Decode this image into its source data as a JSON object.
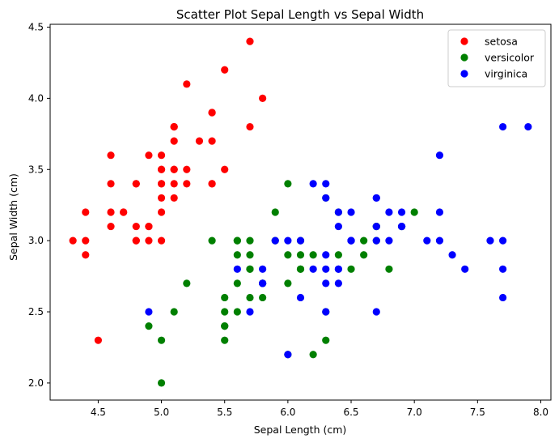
{
  "chart_data": {
    "type": "scatter",
    "title": "Scatter Plot Sepal Length vs Sepal Width",
    "xlabel": "Sepal Length (cm)",
    "ylabel": "Sepal Width (cm)",
    "xlim": [
      4.12,
      8.08
    ],
    "ylim": [
      1.88,
      4.52
    ],
    "xticks": [
      "4.5",
      "5.0",
      "5.5",
      "6.0",
      "6.5",
      "7.0",
      "7.5",
      "8.0"
    ],
    "yticks": [
      "2.0",
      "2.5",
      "3.0",
      "3.5",
      "4.0",
      "4.5"
    ],
    "grid": false,
    "legend_position": "top-right",
    "series": [
      {
        "name": "setosa",
        "color": "#ff0000",
        "points": [
          [
            5.1,
            3.5
          ],
          [
            4.9,
            3.0
          ],
          [
            4.7,
            3.2
          ],
          [
            4.6,
            3.1
          ],
          [
            5.0,
            3.6
          ],
          [
            5.4,
            3.9
          ],
          [
            4.6,
            3.4
          ],
          [
            5.0,
            3.4
          ],
          [
            4.4,
            2.9
          ],
          [
            4.9,
            3.1
          ],
          [
            5.4,
            3.7
          ],
          [
            4.8,
            3.4
          ],
          [
            4.8,
            3.0
          ],
          [
            4.3,
            3.0
          ],
          [
            5.8,
            4.0
          ],
          [
            5.7,
            4.4
          ],
          [
            5.4,
            3.9
          ],
          [
            5.1,
            3.5
          ],
          [
            5.7,
            3.8
          ],
          [
            5.1,
            3.8
          ],
          [
            5.4,
            3.4
          ],
          [
            5.1,
            3.7
          ],
          [
            4.6,
            3.6
          ],
          [
            5.1,
            3.3
          ],
          [
            4.8,
            3.4
          ],
          [
            5.0,
            3.0
          ],
          [
            5.0,
            3.4
          ],
          [
            5.2,
            3.5
          ],
          [
            5.2,
            3.4
          ],
          [
            4.7,
            3.2
          ],
          [
            4.8,
            3.1
          ],
          [
            5.4,
            3.4
          ],
          [
            5.2,
            4.1
          ],
          [
            5.5,
            4.2
          ],
          [
            4.9,
            3.1
          ],
          [
            5.0,
            3.2
          ],
          [
            5.5,
            3.5
          ],
          [
            4.9,
            3.6
          ],
          [
            4.4,
            3.0
          ],
          [
            5.1,
            3.4
          ],
          [
            5.0,
            3.5
          ],
          [
            4.5,
            2.3
          ],
          [
            4.4,
            3.2
          ],
          [
            5.0,
            3.5
          ],
          [
            5.1,
            3.8
          ],
          [
            4.8,
            3.0
          ],
          [
            5.1,
            3.8
          ],
          [
            4.6,
            3.2
          ],
          [
            5.3,
            3.7
          ],
          [
            5.0,
            3.3
          ]
        ]
      },
      {
        "name": "versicolor",
        "color": "#008000",
        "points": [
          [
            7.0,
            3.2
          ],
          [
            6.4,
            3.2
          ],
          [
            6.9,
            3.1
          ],
          [
            5.5,
            2.3
          ],
          [
            6.5,
            2.8
          ],
          [
            5.7,
            2.8
          ],
          [
            6.3,
            3.3
          ],
          [
            4.9,
            2.4
          ],
          [
            6.6,
            2.9
          ],
          [
            5.2,
            2.7
          ],
          [
            5.0,
            2.0
          ],
          [
            5.9,
            3.0
          ],
          [
            6.0,
            2.2
          ],
          [
            6.1,
            2.9
          ],
          [
            5.6,
            2.9
          ],
          [
            6.7,
            3.1
          ],
          [
            5.6,
            3.0
          ],
          [
            5.8,
            2.7
          ],
          [
            6.2,
            2.2
          ],
          [
            5.6,
            2.5
          ],
          [
            5.9,
            3.2
          ],
          [
            6.1,
            2.8
          ],
          [
            6.3,
            2.5
          ],
          [
            6.1,
            2.8
          ],
          [
            6.4,
            2.9
          ],
          [
            6.6,
            3.0
          ],
          [
            6.8,
            2.8
          ],
          [
            6.7,
            3.0
          ],
          [
            6.0,
            2.9
          ],
          [
            5.7,
            2.6
          ],
          [
            5.5,
            2.4
          ],
          [
            5.5,
            2.4
          ],
          [
            5.8,
            2.7
          ],
          [
            6.0,
            2.7
          ],
          [
            5.4,
            3.0
          ],
          [
            6.0,
            3.4
          ],
          [
            6.7,
            3.1
          ],
          [
            6.3,
            2.3
          ],
          [
            5.6,
            3.0
          ],
          [
            5.5,
            2.5
          ],
          [
            5.5,
            2.6
          ],
          [
            6.1,
            3.0
          ],
          [
            5.8,
            2.6
          ],
          [
            5.0,
            2.3
          ],
          [
            5.6,
            2.7
          ],
          [
            5.7,
            3.0
          ],
          [
            5.7,
            2.9
          ],
          [
            6.2,
            2.9
          ],
          [
            5.1,
            2.5
          ],
          [
            5.7,
            2.8
          ]
        ]
      },
      {
        "name": "virginica",
        "color": "#0000ff",
        "points": [
          [
            6.3,
            3.3
          ],
          [
            5.8,
            2.7
          ],
          [
            7.1,
            3.0
          ],
          [
            6.3,
            2.9
          ],
          [
            6.5,
            3.0
          ],
          [
            7.6,
            3.0
          ],
          [
            4.9,
            2.5
          ],
          [
            7.3,
            2.9
          ],
          [
            6.7,
            2.5
          ],
          [
            7.2,
            3.6
          ],
          [
            6.5,
            3.2
          ],
          [
            6.4,
            2.7
          ],
          [
            6.8,
            3.0
          ],
          [
            5.7,
            2.5
          ],
          [
            5.8,
            2.8
          ],
          [
            6.4,
            3.2
          ],
          [
            6.5,
            3.0
          ],
          [
            7.7,
            3.8
          ],
          [
            7.7,
            2.6
          ],
          [
            6.0,
            2.2
          ],
          [
            6.9,
            3.2
          ],
          [
            5.6,
            2.8
          ],
          [
            7.7,
            2.8
          ],
          [
            6.3,
            2.7
          ],
          [
            6.7,
            3.3
          ],
          [
            7.2,
            3.2
          ],
          [
            6.2,
            2.8
          ],
          [
            6.1,
            3.0
          ],
          [
            6.4,
            2.8
          ],
          [
            7.2,
            3.0
          ],
          [
            7.4,
            2.8
          ],
          [
            7.9,
            3.8
          ],
          [
            6.4,
            2.8
          ],
          [
            6.3,
            2.8
          ],
          [
            6.1,
            2.6
          ],
          [
            7.7,
            3.0
          ],
          [
            6.3,
            3.4
          ],
          [
            6.4,
            3.1
          ],
          [
            6.0,
            3.0
          ],
          [
            6.9,
            3.1
          ],
          [
            6.7,
            3.1
          ],
          [
            6.9,
            3.1
          ],
          [
            5.8,
            2.7
          ],
          [
            6.8,
            3.2
          ],
          [
            6.7,
            3.3
          ],
          [
            6.7,
            3.0
          ],
          [
            6.3,
            2.5
          ],
          [
            6.5,
            3.0
          ],
          [
            6.2,
            3.4
          ],
          [
            5.9,
            3.0
          ]
        ]
      }
    ]
  }
}
